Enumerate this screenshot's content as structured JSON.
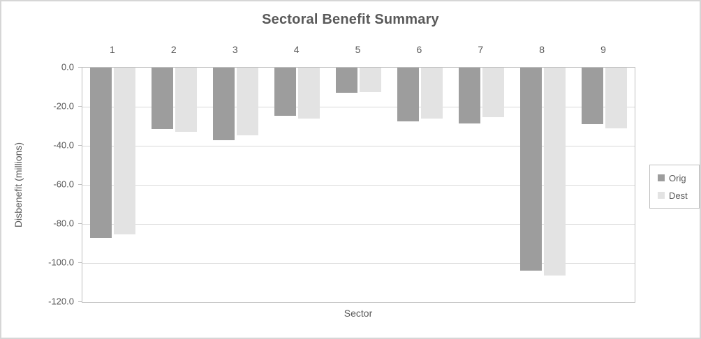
{
  "chart_data": {
    "type": "bar",
    "title": "Sectoral Benefit Summary",
    "xlabel": "Sector",
    "ylabel": "Disbenefit (millions)",
    "categories": [
      "1",
      "2",
      "3",
      "4",
      "5",
      "6",
      "7",
      "8",
      "9"
    ],
    "series": [
      {
        "name": "Orig",
        "color": "#9d9d9d",
        "values": [
          -87.0,
          -31.5,
          -37.0,
          -24.5,
          -13.0,
          -27.5,
          -28.5,
          -104.0,
          -29.0
        ]
      },
      {
        "name": "Dest",
        "color": "#e3e3e3",
        "values": [
          -85.5,
          -33.0,
          -34.5,
          -26.0,
          -12.5,
          -26.0,
          -25.5,
          -106.5,
          -31.0
        ]
      }
    ],
    "ylim": [
      -120,
      0
    ],
    "ytick_values": [
      0,
      -20,
      -40,
      -60,
      -80,
      -100,
      -120
    ],
    "ytick_labels": [
      "0.0",
      "-20.0",
      "-40.0",
      "-60.0",
      "-80.0",
      "-100.0",
      "-120.0"
    ],
    "grid": true,
    "legend_position": "right",
    "orientation": "vertical-negative"
  },
  "colors": {
    "title_text": "#595959",
    "axis_text": "#595959",
    "gridline": "#d9d9d9",
    "axis_line": "#bfbfbf",
    "canvas_border": "#d6d6d6",
    "series_orig": "#9d9d9d",
    "series_dest": "#e3e3e3"
  }
}
